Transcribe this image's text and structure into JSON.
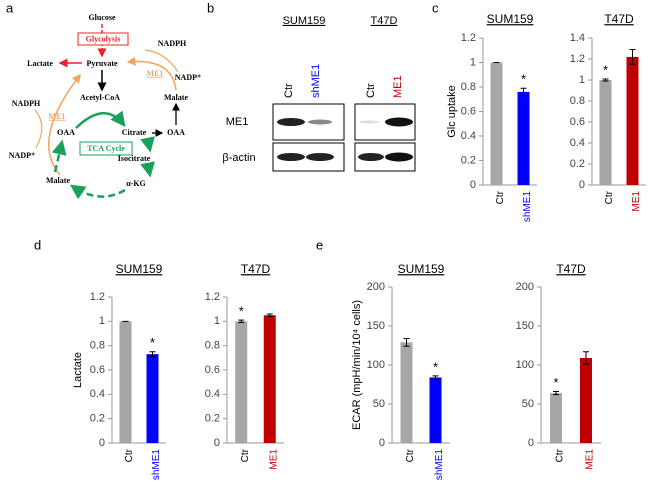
{
  "panels": [
    "a",
    "b",
    "c",
    "d",
    "e"
  ],
  "diagram": {
    "nodes": [
      "Glucose",
      "Glycolysis",
      "Lactate",
      "Pyruvate",
      "NADPH",
      "ME1",
      "NADP⁺",
      "Malate",
      "Acetyl-CoA",
      "NADPH",
      "ME1",
      "NADP⁺",
      "OAA",
      "Citrate",
      "OAA",
      "TCA Cycle",
      "Isocitrate",
      "Malate",
      "α-KG"
    ]
  },
  "blot": {
    "groups": [
      "SUM159",
      "T47D"
    ],
    "lanes": [
      "Ctr",
      "shME1",
      "Ctr",
      "ME1"
    ],
    "rows": [
      "ME1",
      "β-actin"
    ]
  },
  "chart_data": [
    {
      "type": "bar",
      "title": "SUM159",
      "ylabel": "Glc uptake",
      "categories": [
        "Ctr",
        "shME1"
      ],
      "values": [
        1,
        0.76
      ],
      "errors": [
        0,
        0.03
      ],
      "significance": [
        null,
        "*"
      ],
      "colors": [
        "#a6a6a6",
        "#0000ff"
      ],
      "label_colors": [
        "#000000",
        "#0000ff"
      ],
      "ylim": [
        0,
        1.2
      ],
      "yticks": [
        0,
        0.2,
        0.4,
        0.6,
        0.8,
        1,
        1.2
      ]
    },
    {
      "type": "bar",
      "title": "T47D",
      "categories": [
        "Ctr",
        "ME1"
      ],
      "values": [
        1,
        1.22
      ],
      "errors": [
        0.01,
        0.07
      ],
      "significance": [
        "*",
        null
      ],
      "colors": [
        "#a6a6a6",
        "#c00000"
      ],
      "label_colors": [
        "#000000",
        "#c00000"
      ],
      "ylim": [
        0,
        1.4
      ],
      "yticks": [
        0,
        0.2,
        0.4,
        0.6,
        0.8,
        1,
        1.2,
        1.4
      ]
    },
    {
      "type": "bar",
      "title": "SUM159",
      "ylabel": "Lactate",
      "categories": [
        "Ctr",
        "shME1"
      ],
      "values": [
        1,
        0.73
      ],
      "errors": [
        0,
        0.02
      ],
      "significance": [
        null,
        "*"
      ],
      "colors": [
        "#a6a6a6",
        "#0000ff"
      ],
      "label_colors": [
        "#000000",
        "#0000ff"
      ],
      "ylim": [
        0,
        1.2
      ],
      "yticks": [
        0,
        0.2,
        0.4,
        0.6,
        0.8,
        1,
        1.2
      ]
    },
    {
      "type": "bar",
      "title": "T47D",
      "categories": [
        "Ctr",
        "ME1"
      ],
      "values": [
        1,
        1.05
      ],
      "errors": [
        0.01,
        0.01
      ],
      "significance": [
        "*",
        null
      ],
      "colors": [
        "#a6a6a6",
        "#c00000"
      ],
      "label_colors": [
        "#000000",
        "#c00000"
      ],
      "ylim": [
        0,
        1.2
      ],
      "yticks": [
        0,
        0.2,
        0.4,
        0.6,
        0.8,
        1,
        1.2
      ]
    },
    {
      "type": "bar",
      "title": "SUM159",
      "ylabel": "ECAR (mpH/min/10⁴ cells)",
      "categories": [
        "Ctr",
        "shME1"
      ],
      "values": [
        129,
        84
      ],
      "errors": [
        5,
        2
      ],
      "significance": [
        null,
        "*"
      ],
      "colors": [
        "#a6a6a6",
        "#0000ff"
      ],
      "label_colors": [
        "#000000",
        "#0000ff"
      ],
      "ylim": [
        0,
        200
      ],
      "yticks": [
        0,
        50,
        100,
        150,
        200
      ]
    },
    {
      "type": "bar",
      "title": "T47D",
      "categories": [
        "Ctr",
        "ME1"
      ],
      "values": [
        64,
        109
      ],
      "errors": [
        2,
        8
      ],
      "significance": [
        "*",
        null
      ],
      "colors": [
        "#a6a6a6",
        "#c00000"
      ],
      "label_colors": [
        "#000000",
        "#c00000"
      ],
      "ylim": [
        0,
        200
      ],
      "yticks": [
        0,
        50,
        100,
        150,
        200
      ]
    }
  ]
}
